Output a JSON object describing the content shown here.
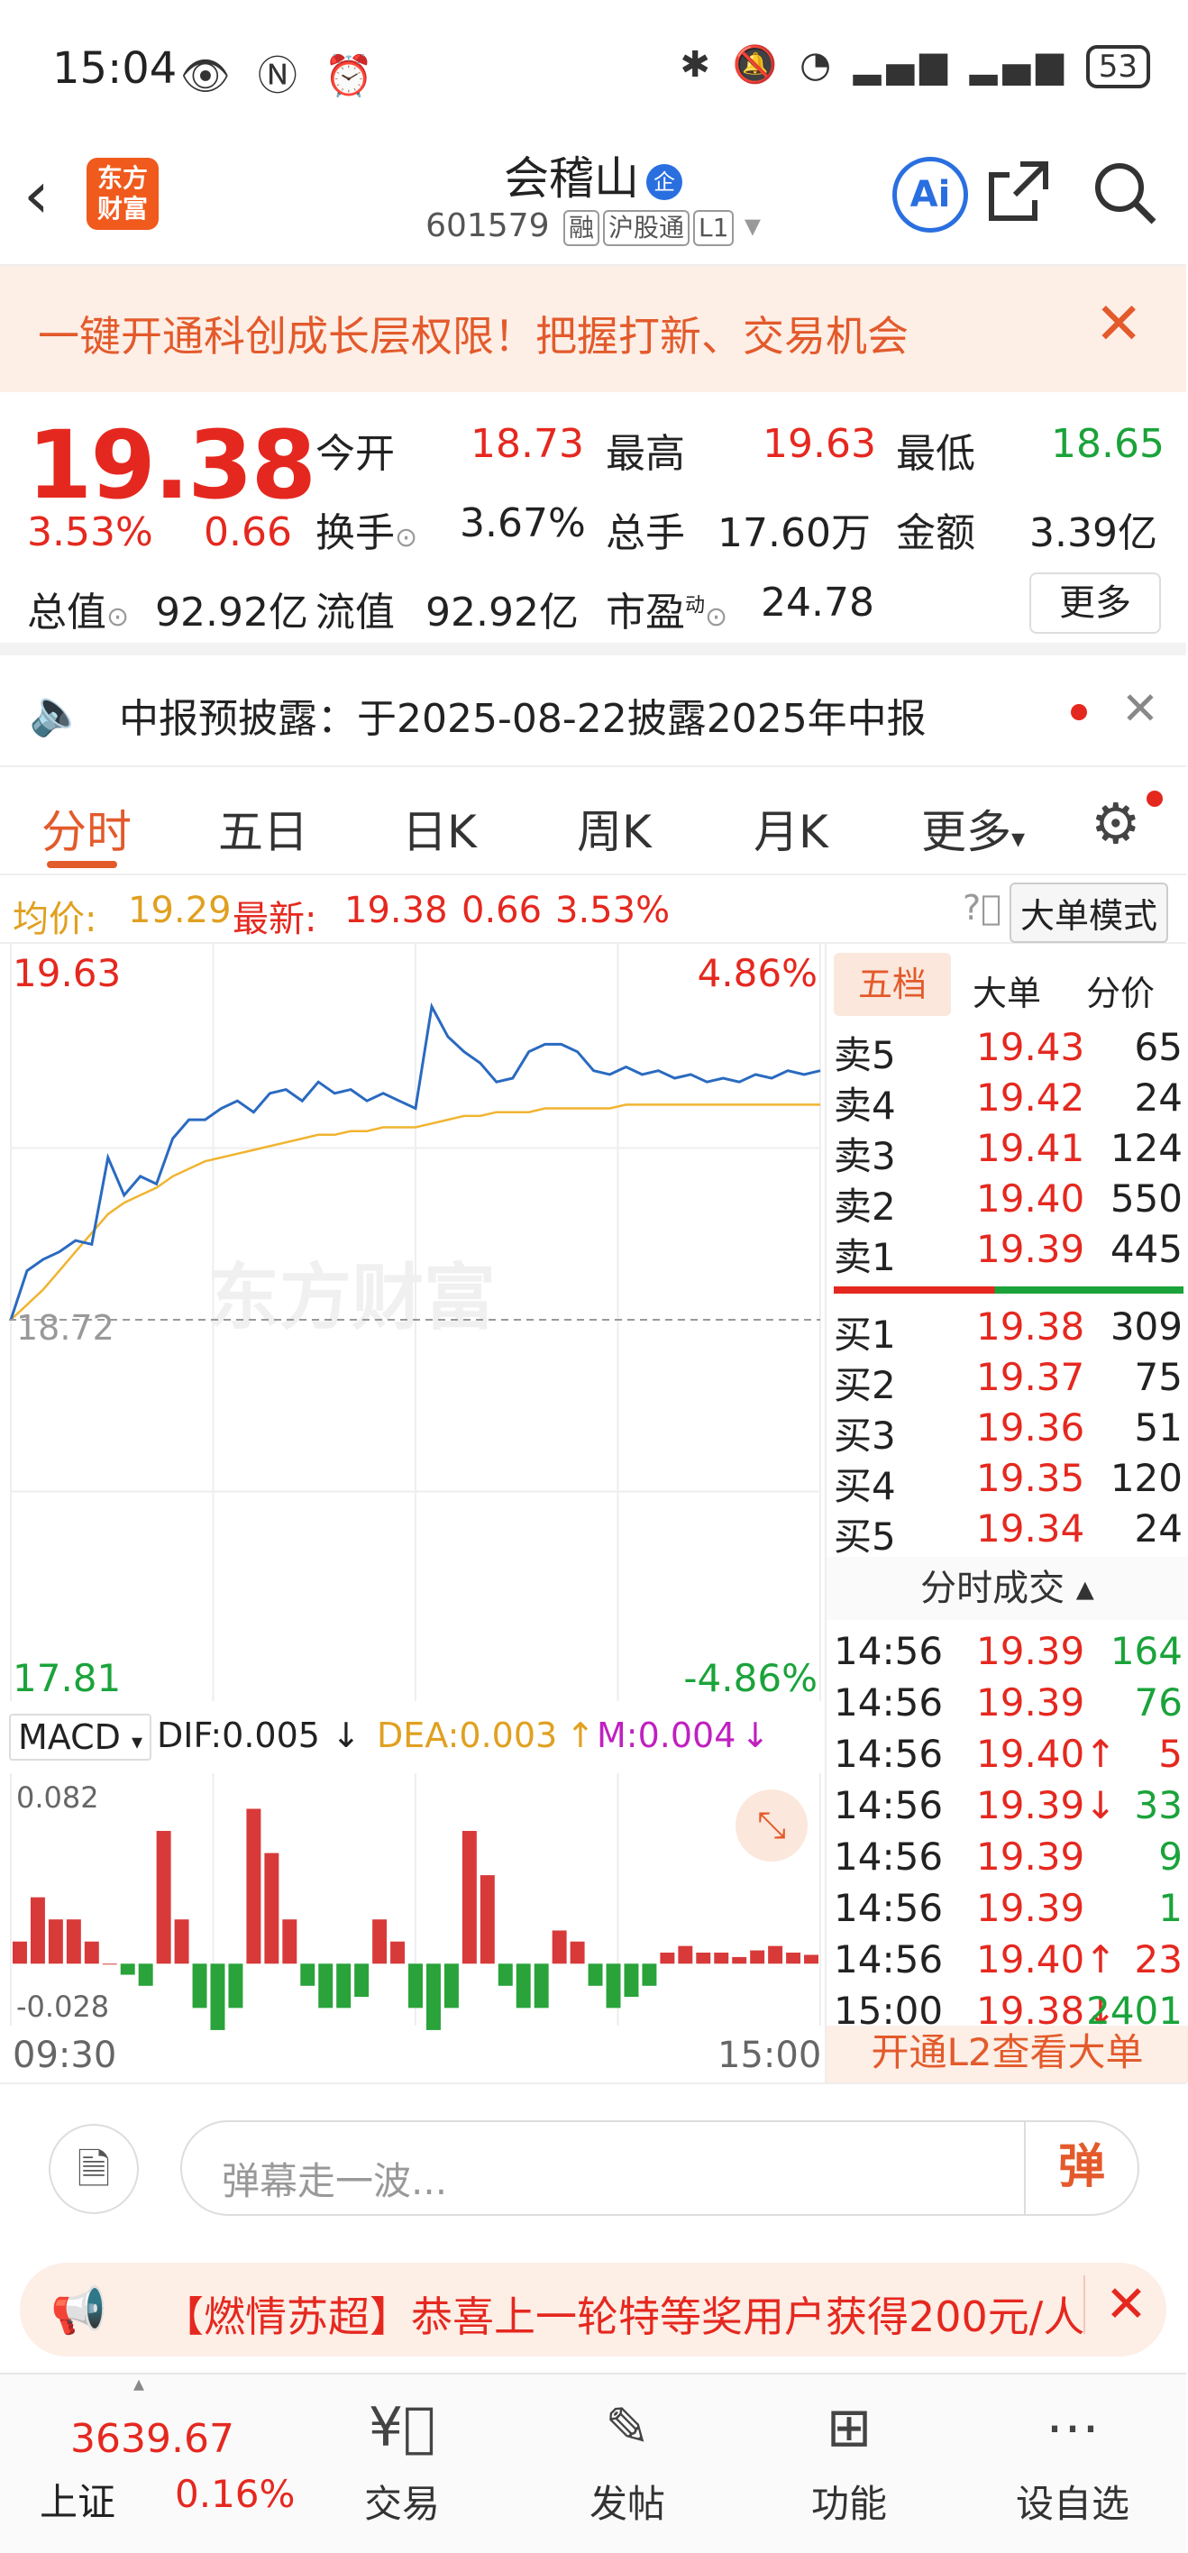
{
  "status": {
    "time": "15:04",
    "battery": "53"
  },
  "header": {
    "logo_line1": "东方",
    "logo_line2": "财富",
    "name": "会稽山",
    "name_badge": "企",
    "code": "601579",
    "tags": [
      "融",
      "沪股通",
      "L1"
    ],
    "ai_label": "Ai"
  },
  "banner": {
    "text": "一键开通科创成长层权限！把握打新、交易机会"
  },
  "quote": {
    "price": "19.38",
    "pct": "3.53%",
    "chg": "0.66",
    "open_label": "今开",
    "open": "18.73",
    "high_label": "最高",
    "high": "19.63",
    "low_label": "最低",
    "low": "18.65",
    "turnover_label": "换手",
    "turnover": "3.67%",
    "volume_label": "总手",
    "volume": "17.60万",
    "amount_label": "金额",
    "amount": "3.39亿",
    "mktcap_label": "总值",
    "mktcap": "92.92亿",
    "float_label": "流值",
    "float": "92.92亿",
    "pe_label": "市盈",
    "pe_sup": "动",
    "pe": "24.78",
    "more": "更多"
  },
  "notice": {
    "text": "中报预披露：于2025-08-22披露2025年中报"
  },
  "tabs": [
    "分时",
    "五日",
    "日K",
    "周K",
    "月K",
    "更多"
  ],
  "avg": {
    "avg_label": "均价:",
    "avg": "19.29",
    "last_label": "最新:",
    "last": "19.38",
    "chg": "0.66",
    "pct": "3.53%",
    "mode": "大单模式"
  },
  "chart": {
    "y_top": "19.63",
    "y_mid": "18.72",
    "y_bot": "17.81",
    "pct_top": "4.86%",
    "pct_bot": "-4.86%",
    "watermark": "东方财富",
    "macd_label": "MACD",
    "dif": "DIF:0.005",
    "dea": "DEA:0.003",
    "m": "M:0.004",
    "macd_top": "0.082",
    "macd_bot": "-0.028",
    "t_start": "09:30",
    "t_end": "15:00"
  },
  "chart_data": {
    "type": "line",
    "x_start": "09:30",
    "x_end": "15:00",
    "ylim": [
      17.81,
      19.63
    ],
    "prev_close": 18.72,
    "series": [
      {
        "values": [
          18.72,
          18.85,
          18.88,
          18.9,
          18.93,
          18.92,
          19.15,
          19.05,
          19.1,
          19.08,
          19.2,
          19.25,
          19.25,
          19.28,
          19.3,
          19.27,
          19.32,
          19.33,
          19.3,
          19.35,
          19.32,
          19.33,
          19.3,
          19.32,
          19.3,
          19.28,
          19.55,
          19.47,
          19.43,
          19.4,
          19.35,
          19.36,
          19.43,
          19.45,
          19.45,
          19.43,
          19.38,
          19.37,
          19.39,
          19.37,
          19.38,
          19.36,
          19.37,
          19.35,
          19.36,
          19.35,
          19.37,
          19.36,
          19.38,
          19.37,
          19.38
        ]
      },
      {
        "values": [
          18.72,
          18.76,
          18.8,
          18.85,
          18.9,
          18.95,
          19.0,
          19.03,
          19.05,
          19.07,
          19.1,
          19.12,
          19.14,
          19.15,
          19.16,
          19.17,
          19.18,
          19.19,
          19.2,
          19.21,
          19.21,
          19.22,
          19.22,
          19.23,
          19.23,
          19.23,
          19.24,
          19.25,
          19.26,
          19.26,
          19.27,
          19.27,
          19.27,
          19.28,
          19.28,
          19.28,
          19.28,
          19.28,
          19.29,
          19.29,
          19.29,
          19.29,
          19.29,
          19.29,
          19.29,
          19.29,
          19.29,
          19.29,
          19.29,
          19.29,
          19.29
        ]
      }
    ],
    "macd": {
      "ylim": [
        -0.028,
        0.082
      ],
      "bars": [
        0.01,
        0.03,
        0.02,
        0.02,
        0.01,
        0,
        -0.005,
        -0.01,
        0.06,
        0.02,
        -0.02,
        -0.03,
        -0.02,
        0.07,
        0.05,
        0.02,
        -0.01,
        -0.02,
        -0.02,
        -0.015,
        0.02,
        0.01,
        -0.02,
        -0.03,
        -0.02,
        0.06,
        0.04,
        -0.01,
        -0.02,
        -0.02,
        0.015,
        0.01,
        -0.01,
        -0.02,
        -0.015,
        -0.01,
        0.005,
        0.008,
        0.005,
        0.005,
        0.003,
        0.006,
        0.008,
        0.005,
        0.004
      ]
    }
  },
  "orderbook": {
    "tabs": [
      "五档",
      "大单",
      "分价"
    ],
    "asks": [
      {
        "l": "卖5",
        "p": "19.43",
        "v": "65"
      },
      {
        "l": "卖4",
        "p": "19.42",
        "v": "24"
      },
      {
        "l": "卖3",
        "p": "19.41",
        "v": "124"
      },
      {
        "l": "卖2",
        "p": "19.40",
        "v": "550"
      },
      {
        "l": "卖1",
        "p": "19.39",
        "v": "445"
      }
    ],
    "bids": [
      {
        "l": "买1",
        "p": "19.38",
        "v": "309"
      },
      {
        "l": "买2",
        "p": "19.37",
        "v": "75"
      },
      {
        "l": "买3",
        "p": "19.36",
        "v": "51"
      },
      {
        "l": "买4",
        "p": "19.35",
        "v": "120"
      },
      {
        "l": "买5",
        "p": "19.34",
        "v": "24"
      }
    ],
    "ticks_title": "分时成交",
    "ticks": [
      {
        "t": "14:56",
        "p": "19.39",
        "v": "164"
      },
      {
        "t": "14:56",
        "p": "19.39",
        "v": "76"
      },
      {
        "t": "14:56",
        "p": "19.40↑",
        "v": "5"
      },
      {
        "t": "14:56",
        "p": "19.39↓",
        "v": "33"
      },
      {
        "t": "14:56",
        "p": "19.39",
        "v": "9"
      },
      {
        "t": "14:56",
        "p": "19.39",
        "v": "1"
      },
      {
        "t": "14:56",
        "p": "19.40↑",
        "v": "23"
      },
      {
        "t": "15:00",
        "p": "19.38↓",
        "v": "2401"
      }
    ],
    "l2": "开通L2查看大单"
  },
  "chat": {
    "placeholder": "弹幕走一波...",
    "btn": "弹"
  },
  "promo": {
    "text": "【燃情苏超】恭喜上一轮特等奖用户获得200元/人"
  },
  "nav": {
    "index_value": "3639.67",
    "index_name": "上证",
    "index_pct": "0.16%",
    "items": [
      "交易",
      "发帖",
      "功能",
      "设自选"
    ]
  }
}
